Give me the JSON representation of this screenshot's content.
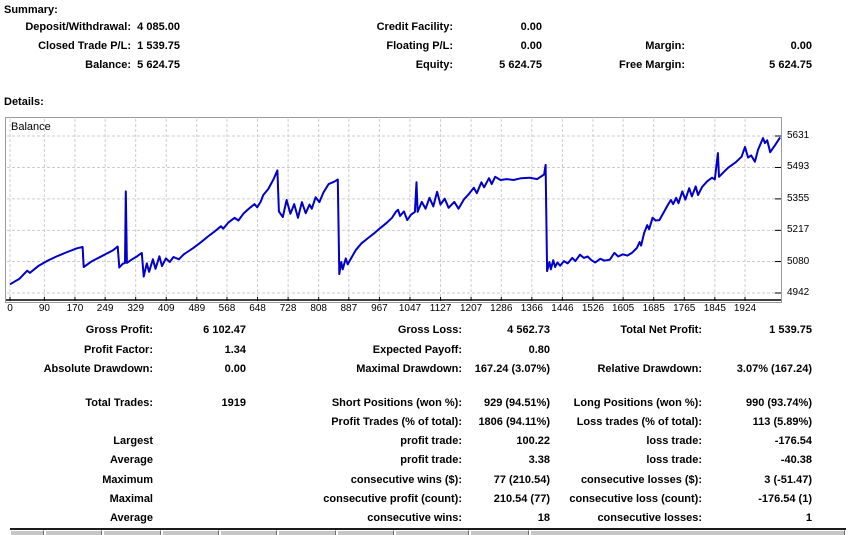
{
  "page": {
    "summary_heading": "Summary:",
    "details_heading": "Details:"
  },
  "summary": {
    "rows": [
      {
        "c1l": "Deposit/Withdrawal:",
        "c1v": "4 085.00",
        "c2l": "Credit Facility:",
        "c2v": "0.00",
        "c3l": "",
        "c3v": ""
      },
      {
        "c1l": "Closed Trade P/L:",
        "c1v": "1 539.75",
        "c2l": "Floating P/L:",
        "c2v": "0.00",
        "c3l": "Margin:",
        "c3v": "0.00"
      },
      {
        "c1l": "Balance:",
        "c1v": "5 624.75",
        "c2l": "Equity:",
        "c2v": "5 624.75",
        "c3l": "Free Margin:",
        "c3v": "5 624.75"
      }
    ]
  },
  "details": {
    "rows": [
      {
        "c1l": "Gross Profit:",
        "c1v": "6 102.47",
        "c2l": "Gross Loss:",
        "c2v": "4 562.73",
        "c3l": "Total Net Profit:",
        "c3v": "1 539.75"
      },
      {
        "c1l": "Profit Factor:",
        "c1v": "1.34",
        "c2l": "Expected Payoff:",
        "c2v": "0.80",
        "c3l": "",
        "c3v": ""
      },
      {
        "c1l": "Absolute Drawdown:",
        "c1v": "0.00",
        "c2l": "Maximal Drawdown:",
        "c2v": "167.24 (3.07%)",
        "c3l": "Relative Drawdown:",
        "c3v": "3.07% (167.24)"
      },
      {
        "c1l": "Total Trades:",
        "c1v": "1919",
        "c2l": "Short Positions (won %):",
        "c2v": "929 (94.51%)",
        "c3l": "Long Positions (won %):",
        "c3v": "990 (93.74%)"
      },
      {
        "c1l": "",
        "c1v": "",
        "c2l": "Profit Trades (% of total):",
        "c2v": "1806 (94.11%)",
        "c3l": "Loss trades (% of total):",
        "c3v": "113 (5.89%)"
      },
      {
        "c1l": "Largest",
        "c1v": "",
        "c2l": "profit trade:",
        "c2v": "100.22",
        "c3l": "loss trade:",
        "c3v": "-176.54"
      },
      {
        "c1l": "Average",
        "c1v": "",
        "c2l": "profit trade:",
        "c2v": "3.38",
        "c3l": "loss trade:",
        "c3v": "-40.38"
      },
      {
        "c1l": "Maximum",
        "c1v": "",
        "c2l": "consecutive wins ($):",
        "c2v": "77 (210.54)",
        "c3l": "consecutive losses ($):",
        "c3v": "3 (-51.47)"
      },
      {
        "c1l": "Maximal",
        "c1v": "",
        "c2l": "consecutive profit (count):",
        "c2v": "210.54 (77)",
        "c3l": "consecutive loss (count):",
        "c3v": "-176.54 (1)"
      },
      {
        "c1l": "Average",
        "c1v": "",
        "c2l": "consecutive wins:",
        "c2v": "18",
        "c3l": "consecutive losses:",
        "c3v": "1"
      }
    ]
  },
  "chart_data": {
    "type": "line",
    "title": "Balance",
    "series_label": "Balance",
    "line_color": "#0000C8",
    "grid_color": "#cdcdcd",
    "xlabel": "",
    "ylabel": "",
    "ylim": [
      4942,
      5631
    ],
    "x_ticks": [
      0,
      90,
      170,
      249,
      329,
      409,
      489,
      568,
      648,
      728,
      808,
      887,
      967,
      1047,
      1127,
      1207,
      1286,
      1366,
      1446,
      1526,
      1605,
      1685,
      1765,
      1845,
      1924
    ],
    "y_ticks": [
      4942,
      5080,
      5217,
      5355,
      5493,
      5631
    ],
    "points": [
      [
        0,
        4980
      ],
      [
        25,
        5005
      ],
      [
        45,
        5040
      ],
      [
        52,
        5030
      ],
      [
        75,
        5062
      ],
      [
        100,
        5085
      ],
      [
        125,
        5105
      ],
      [
        150,
        5122
      ],
      [
        175,
        5138
      ],
      [
        190,
        5144
      ],
      [
        193,
        5056
      ],
      [
        215,
        5082
      ],
      [
        245,
        5108
      ],
      [
        270,
        5130
      ],
      [
        282,
        5146
      ],
      [
        286,
        5054
      ],
      [
        295,
        5070
      ],
      [
        301,
        5074
      ],
      [
        303,
        5388
      ],
      [
        306,
        5074
      ],
      [
        318,
        5088
      ],
      [
        332,
        5102
      ],
      [
        345,
        5118
      ],
      [
        350,
        5014
      ],
      [
        358,
        5072
      ],
      [
        364,
        5035
      ],
      [
        374,
        5090
      ],
      [
        381,
        5048
      ],
      [
        391,
        5103
      ],
      [
        398,
        5060
      ],
      [
        408,
        5094
      ],
      [
        418,
        5078
      ],
      [
        428,
        5100
      ],
      [
        442,
        5090
      ],
      [
        455,
        5112
      ],
      [
        480,
        5140
      ],
      [
        500,
        5165
      ],
      [
        520,
        5192
      ],
      [
        538,
        5215
      ],
      [
        552,
        5235
      ],
      [
        558,
        5224
      ],
      [
        572,
        5252
      ],
      [
        588,
        5272
      ],
      [
        598,
        5260
      ],
      [
        612,
        5292
      ],
      [
        628,
        5316
      ],
      [
        640,
        5332
      ],
      [
        647,
        5318
      ],
      [
        656,
        5342
      ],
      [
        663,
        5372
      ],
      [
        676,
        5398
      ],
      [
        690,
        5442
      ],
      [
        700,
        5480
      ],
      [
        704,
        5300
      ],
      [
        714,
        5275
      ],
      [
        724,
        5350
      ],
      [
        734,
        5290
      ],
      [
        744,
        5332
      ],
      [
        754,
        5272
      ],
      [
        764,
        5341
      ],
      [
        774,
        5292
      ],
      [
        784,
        5330
      ],
      [
        790,
        5312
      ],
      [
        800,
        5362
      ],
      [
        810,
        5341
      ],
      [
        820,
        5382
      ],
      [
        834,
        5420
      ],
      [
        848,
        5430
      ],
      [
        858,
        5440
      ],
      [
        862,
        5025
      ],
      [
        867,
        5078
      ],
      [
        871,
        5046
      ],
      [
        879,
        5094
      ],
      [
        884,
        5068
      ],
      [
        890,
        5086
      ],
      [
        905,
        5130
      ],
      [
        920,
        5160
      ],
      [
        938,
        5184
      ],
      [
        955,
        5206
      ],
      [
        970,
        5228
      ],
      [
        986,
        5250
      ],
      [
        1000,
        5272
      ],
      [
        1010,
        5298
      ],
      [
        1016,
        5307
      ],
      [
        1021,
        5280
      ],
      [
        1031,
        5300
      ],
      [
        1040,
        5262
      ],
      [
        1050,
        5286
      ],
      [
        1060,
        5298
      ],
      [
        1064,
        5428
      ],
      [
        1067,
        5298
      ],
      [
        1078,
        5342
      ],
      [
        1088,
        5312
      ],
      [
        1098,
        5360
      ],
      [
        1108,
        5322
      ],
      [
        1118,
        5386
      ],
      [
        1127,
        5330
      ],
      [
        1138,
        5356
      ],
      [
        1148,
        5316
      ],
      [
        1163,
        5342
      ],
      [
        1174,
        5312
      ],
      [
        1188,
        5352
      ],
      [
        1200,
        5374
      ],
      [
        1214,
        5404
      ],
      [
        1222,
        5380
      ],
      [
        1234,
        5428
      ],
      [
        1241,
        5406
      ],
      [
        1254,
        5446
      ],
      [
        1261,
        5420
      ],
      [
        1270,
        5452
      ],
      [
        1284,
        5438
      ],
      [
        1300,
        5442
      ],
      [
        1318,
        5438
      ],
      [
        1338,
        5446
      ],
      [
        1360,
        5448
      ],
      [
        1380,
        5442
      ],
      [
        1398,
        5462
      ],
      [
        1402,
        5504
      ],
      [
        1406,
        5038
      ],
      [
        1412,
        5078
      ],
      [
        1416,
        5046
      ],
      [
        1422,
        5086
      ],
      [
        1427,
        5056
      ],
      [
        1433,
        5076
      ],
      [
        1440,
        5062
      ],
      [
        1450,
        5082
      ],
      [
        1460,
        5072
      ],
      [
        1472,
        5096
      ],
      [
        1480,
        5082
      ],
      [
        1492,
        5110
      ],
      [
        1502,
        5096
      ],
      [
        1512,
        5102
      ],
      [
        1522,
        5086
      ],
      [
        1532,
        5076
      ],
      [
        1545,
        5092
      ],
      [
        1556,
        5084
      ],
      [
        1570,
        5088
      ],
      [
        1582,
        5118
      ],
      [
        1592,
        5102
      ],
      [
        1604,
        5112
      ],
      [
        1616,
        5106
      ],
      [
        1628,
        5118
      ],
      [
        1641,
        5140
      ],
      [
        1648,
        5166
      ],
      [
        1652,
        5150
      ],
      [
        1660,
        5205
      ],
      [
        1668,
        5240
      ],
      [
        1673,
        5222
      ],
      [
        1682,
        5272
      ],
      [
        1690,
        5260
      ],
      [
        1700,
        5262
      ],
      [
        1712,
        5298
      ],
      [
        1722,
        5328
      ],
      [
        1730,
        5350
      ],
      [
        1736,
        5332
      ],
      [
        1744,
        5360
      ],
      [
        1750,
        5336
      ],
      [
        1760,
        5388
      ],
      [
        1768,
        5352
      ],
      [
        1778,
        5402
      ],
      [
        1785,
        5366
      ],
      [
        1795,
        5410
      ],
      [
        1801,
        5372
      ],
      [
        1812,
        5408
      ],
      [
        1825,
        5432
      ],
      [
        1838,
        5448
      ],
      [
        1845,
        5440
      ],
      [
        1853,
        5556
      ],
      [
        1856,
        5452
      ],
      [
        1868,
        5472
      ],
      [
        1880,
        5492
      ],
      [
        1900,
        5516
      ],
      [
        1915,
        5540
      ],
      [
        1924,
        5583
      ],
      [
        1932,
        5536
      ],
      [
        1940,
        5546
      ],
      [
        1950,
        5518
      ],
      [
        1958,
        5570
      ],
      [
        1971,
        5622
      ],
      [
        1976,
        5600
      ],
      [
        1982,
        5612
      ],
      [
        1990,
        5560
      ],
      [
        2003,
        5592
      ],
      [
        2016,
        5625
      ]
    ]
  },
  "footer_table": {
    "cell_edges": [
      10,
      45,
      103,
      162,
      220,
      278,
      337,
      395,
      470,
      530,
      846
    ]
  }
}
